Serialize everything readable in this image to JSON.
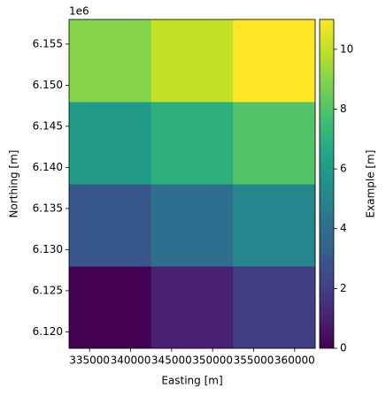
{
  "chart_data": {
    "type": "heatmap",
    "xlabel": "Easting [m]",
    "ylabel": "Northing [m]",
    "colorbar_label": "Example [m]",
    "y_offset_label": "1e6",
    "colormap": "viridis",
    "x_edges": [
      332500,
      342500,
      352500,
      362500
    ],
    "y_edges": [
      6118000,
      6128000,
      6138000,
      6148000,
      6158000
    ],
    "values": [
      [
        0,
        1,
        2
      ],
      [
        3,
        4,
        5
      ],
      [
        6,
        7,
        8
      ],
      [
        9,
        10,
        11
      ]
    ],
    "xlim": [
      332500,
      362500
    ],
    "ylim": [
      6118000,
      6158000
    ],
    "zlim": [
      0,
      11
    ],
    "xticks": [
      335000,
      340000,
      345000,
      350000,
      355000,
      360000
    ],
    "yticks": [
      {
        "value": 6120000,
        "label": "6.120"
      },
      {
        "value": 6125000,
        "label": "6.125"
      },
      {
        "value": 6130000,
        "label": "6.130"
      },
      {
        "value": 6135000,
        "label": "6.135"
      },
      {
        "value": 6140000,
        "label": "6.140"
      },
      {
        "value": 6145000,
        "label": "6.145"
      },
      {
        "value": 6150000,
        "label": "6.150"
      },
      {
        "value": 6155000,
        "label": "6.155"
      }
    ],
    "zticks": [
      0,
      2,
      4,
      6,
      8,
      10
    ]
  }
}
